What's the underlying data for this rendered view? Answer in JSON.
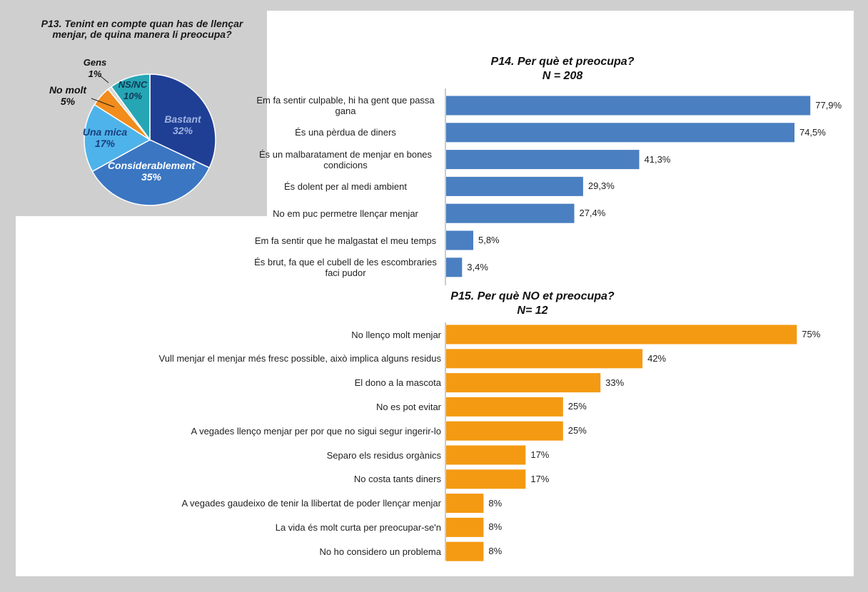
{
  "chart_data": [
    {
      "type": "pie",
      "title": "P13. Tenint en compte quan has de llençar menjar, de quina manera li preocupa?",
      "slices": [
        {
          "label": "Bastant",
          "value": 32,
          "value_label": "32%",
          "color": "#1f3f95"
        },
        {
          "label": "Considerablement",
          "value": 35,
          "value_label": "35%",
          "color": "#3b76c3"
        },
        {
          "label": "Una mica",
          "value": 17,
          "value_label": "17%",
          "color": "#4eb3ea"
        },
        {
          "label": "No molt",
          "value": 5,
          "value_label": "5%",
          "color": "#f28c1c"
        },
        {
          "label": "Gens",
          "value": 1,
          "value_label": "1%",
          "color": "#d9d9d9"
        },
        {
          "label": "NS/NC",
          "value": 10,
          "value_label": "10%",
          "color": "#26a6b4"
        }
      ]
    },
    {
      "type": "bar",
      "orientation": "horizontal",
      "title": "P14. Per què et preocupa?",
      "subtitle": "N = 208",
      "color": "#4a7fc1",
      "xlim": [
        0,
        80
      ],
      "categories": [
        "Em fa sentir culpable, hi ha gent que passa gana",
        "És una pèrdua de diners",
        "És un malbaratament de menjar en bones condicions",
        "És dolent per al medi ambient",
        "No em puc permetre llençar menjar",
        "Em fa sentir que he malgastat el meu temps",
        "És brut, fa que el cubell de les escombraries faci pudor"
      ],
      "values": [
        77.9,
        74.5,
        41.3,
        29.3,
        27.4,
        5.8,
        3.4
      ],
      "value_labels": [
        "77,9%",
        "74,5%",
        "41,3%",
        "29,3%",
        "27,4%",
        "5,8%",
        "3,4%"
      ]
    },
    {
      "type": "bar",
      "orientation": "horizontal",
      "title": "P15. Per què NO et preocupa?",
      "subtitle": "N= 12",
      "color": "#f49a12",
      "xlim": [
        0,
        80
      ],
      "categories": [
        "No llenço molt menjar",
        "Vull menjar el menjar més fresc possible, això implica alguns residus",
        "El dono a la mascota",
        "No es pot evitar",
        "A vegades llenço menjar per por que no sigui segur ingerir-lo",
        "Separo els residus orgànics",
        "No costa tants diners",
        "A vegades gaudeixo de tenir la llibertat de poder llençar menjar",
        "La vida és molt curta per preocupar-se'n",
        "No ho considero un problema"
      ],
      "values": [
        75,
        42,
        33,
        25,
        25,
        17,
        17,
        8,
        8,
        8
      ],
      "value_labels": [
        "75%",
        "42%",
        "33%",
        "25%",
        "25%",
        "17%",
        "17%",
        "8%",
        "8%",
        "8%"
      ]
    }
  ]
}
